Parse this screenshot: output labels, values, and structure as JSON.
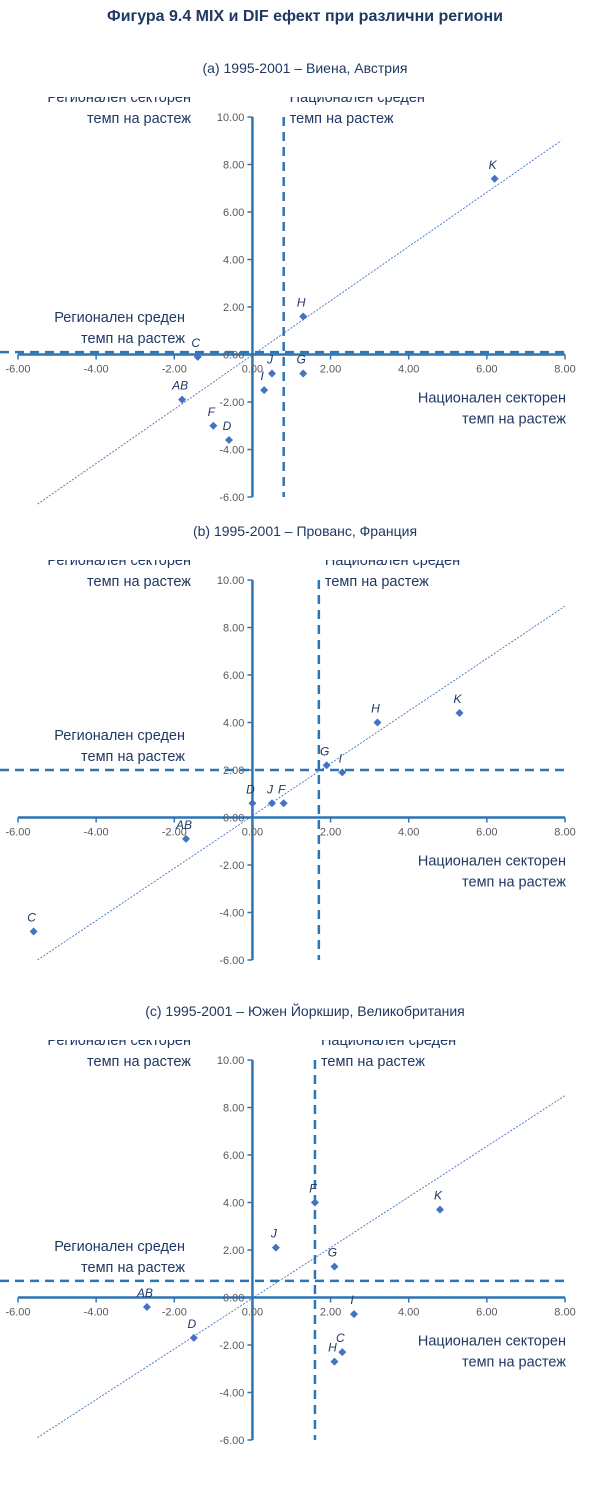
{
  "figure_title": "Фигура 9.4 MIX и DIF ефект при различни региони",
  "chart_data": [
    {
      "type": "scatter",
      "title": "(a) 1995-2001 – Виена, Австрия",
      "xlim": [
        -6,
        8
      ],
      "ylim": [
        -6,
        10
      ],
      "x_ticks": [
        "-6.00",
        "-4.00",
        "-2.00",
        "0.00",
        "2.00",
        "4.00",
        "6.00",
        "8.00"
      ],
      "y_ticks": [
        "10.00",
        "8.00",
        "6.00",
        "4.00",
        "2.00",
        "0.00",
        "-2.00",
        "-4.00",
        "-6.00"
      ],
      "national_average": 0.8,
      "regional_average": 0.1,
      "trendline": {
        "x": [
          -5.5,
          7.9
        ],
        "y": [
          -6.3,
          9.0
        ]
      },
      "points": [
        {
          "label": "K",
          "x": 6.2,
          "y": 7.4
        },
        {
          "label": "H",
          "x": 1.3,
          "y": 1.6
        },
        {
          "label": "C",
          "x": -1.4,
          "y": -0.1
        },
        {
          "label": "J",
          "x": 0.5,
          "y": -0.8
        },
        {
          "label": "G",
          "x": 1.3,
          "y": -0.8
        },
        {
          "label": "I",
          "x": 0.3,
          "y": -1.5
        },
        {
          "label": "AB",
          "x": -1.8,
          "y": -1.9
        },
        {
          "label": "F",
          "x": -1.0,
          "y": -3.0
        },
        {
          "label": "D",
          "x": -0.6,
          "y": -3.6
        }
      ],
      "labels": {
        "regional_sector": "Регионален секторен темп на растеж",
        "national_average": "Национален среден темп на растеж",
        "regional_average": "Регионален среден темп на растеж",
        "national_sector": "Национален секторен темп на растеж"
      },
      "colors": {
        "axis": "#2e75b6",
        "points": "#4472c4",
        "trend": "#4472c4",
        "text": "#1f3864"
      }
    },
    {
      "type": "scatter",
      "title": "(b) 1995-2001 – Прованс, Франция",
      "xlim": [
        -6,
        8
      ],
      "ylim": [
        -6,
        10
      ],
      "x_ticks": [
        "-6.00",
        "-4.00",
        "-2.00",
        "0.00",
        "2.00",
        "4.00",
        "6.00",
        "8.00"
      ],
      "y_ticks": [
        "10.00",
        "8.00",
        "6.00",
        "4.00",
        "2.00",
        "0.00",
        "-2.00",
        "-4.00",
        "-6.00"
      ],
      "national_average": 1.7,
      "regional_average": 2.0,
      "trendline": {
        "x": [
          -5.5,
          8.0
        ],
        "y": [
          -6.0,
          8.9
        ]
      },
      "points": [
        {
          "label": "K",
          "x": 5.3,
          "y": 4.4
        },
        {
          "label": "H",
          "x": 3.2,
          "y": 4.0
        },
        {
          "label": "G",
          "x": 1.9,
          "y": 2.2
        },
        {
          "label": "I",
          "x": 2.3,
          "y": 1.9
        },
        {
          "label": "D",
          "x": 0.0,
          "y": 0.6
        },
        {
          "label": "J",
          "x": 0.5,
          "y": 0.6
        },
        {
          "label": "F",
          "x": 0.8,
          "y": 0.6
        },
        {
          "label": "AB",
          "x": -1.7,
          "y": -0.9
        },
        {
          "label": "C",
          "x": -5.6,
          "y": -4.8
        }
      ],
      "labels": {
        "regional_sector": "Регионален секторен темп на растеж",
        "national_average": "Национален среден темп на растеж",
        "regional_average": "Регионален среден темп на растеж",
        "national_sector": "Национален секторен темп на растеж"
      },
      "colors": {
        "axis": "#2e75b6",
        "points": "#4472c4",
        "trend": "#4472c4",
        "text": "#1f3864"
      }
    },
    {
      "type": "scatter",
      "title": "(c) 1995-2001 – Южен Йоркшир, Великобритания",
      "xlim": [
        -6,
        8
      ],
      "ylim": [
        -6,
        10
      ],
      "x_ticks": [
        "-6.00",
        "-4.00",
        "-2.00",
        "0.00",
        "2.00",
        "4.00",
        "6.00",
        "8.00"
      ],
      "y_ticks": [
        "10.00",
        "8.00",
        "6.00",
        "4.00",
        "2.00",
        "0.00",
        "-2.00",
        "-4.00",
        "-6.00"
      ],
      "national_average": 1.6,
      "regional_average": 0.7,
      "trendline": {
        "x": [
          -5.5,
          8.0
        ],
        "y": [
          -5.9,
          8.5
        ]
      },
      "points": [
        {
          "label": "K",
          "x": 4.8,
          "y": 3.7
        },
        {
          "label": "F",
          "x": 1.6,
          "y": 4.0
        },
        {
          "label": "J",
          "x": 0.6,
          "y": 2.1
        },
        {
          "label": "G",
          "x": 2.1,
          "y": 1.3
        },
        {
          "label": "I",
          "x": 2.6,
          "y": -0.7
        },
        {
          "label": "AB",
          "x": -2.7,
          "y": -0.4
        },
        {
          "label": "D",
          "x": -1.5,
          "y": -1.7
        },
        {
          "label": "C",
          "x": 2.3,
          "y": -2.3
        },
        {
          "label": "H",
          "x": 2.1,
          "y": -2.7
        }
      ],
      "labels": {
        "regional_sector": "Регионален секторен темп на растеж",
        "national_average": "Национален среден темп на растеж",
        "regional_average": "Регионален среден темп на растеж",
        "national_sector": "Национален секторен темп на растеж"
      },
      "colors": {
        "axis": "#2e75b6",
        "points": "#4472c4",
        "trend": "#4472c4",
        "text": "#1f3864"
      }
    }
  ]
}
